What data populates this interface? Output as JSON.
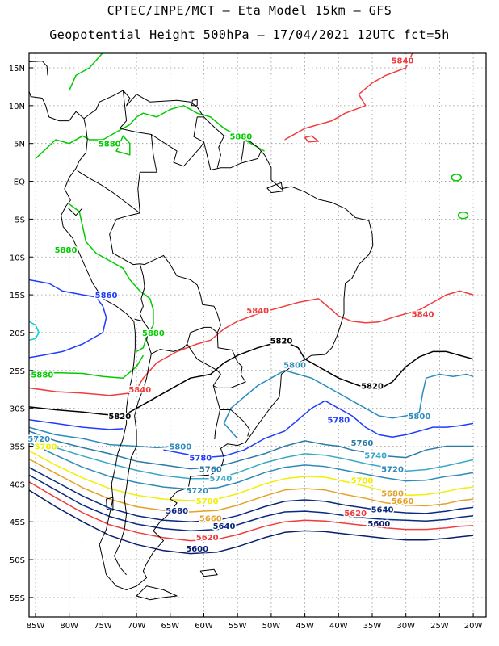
{
  "title_line1": "CPTEC/INPE/MCT –  Eta Model 15km – GFS",
  "title_line2": "Geopotential Height 500hPa – 17/04/2021 12UTC fct=5h",
  "lat_ticks": [
    "15N",
    "10N",
    "5N",
    "EQ",
    "5S",
    "10S",
    "15S",
    "20S",
    "25S",
    "30S",
    "35S",
    "40S",
    "45S",
    "50S",
    "55S"
  ],
  "lon_ticks": [
    "85W",
    "80W",
    "75W",
    "70W",
    "65W",
    "60W",
    "55W",
    "50W",
    "45W",
    "40W",
    "35W",
    "30W",
    "25W",
    "20W"
  ],
  "colors": {
    "c5880": "#00cc00",
    "c5860": "#1e3cff",
    "c5840": "#f03c3c",
    "c5820": "#000000",
    "c5800": "#2a8cbe",
    "c5780": "#1e3cff",
    "c5760": "#2a7aa8",
    "c5740": "#38a8c8",
    "c5720": "#2e8ab8",
    "c5700": "#f0f000",
    "c5680": "#e6a028",
    "c5660": "#0a2a80",
    "c5640": "#0a2a80",
    "c5620": "#f03c3c",
    "c5600": "#0a1e6e",
    "land": "#000000",
    "cyan": "#00d2d2"
  },
  "contour_labels": [
    {
      "text": "5840",
      "lon": -30.5,
      "lat": 16.0,
      "color": "c5840"
    },
    {
      "text": "5880",
      "lon": -74.0,
      "lat": 5.0,
      "color": "c5880"
    },
    {
      "text": "5880",
      "lon": -54.5,
      "lat": 6.0,
      "color": "c5880"
    },
    {
      "text": "5880",
      "lon": -80.5,
      "lat": -9.0,
      "color": "c5880"
    },
    {
      "text": "5860",
      "lon": -74.5,
      "lat": -15.0,
      "color": "c5860"
    },
    {
      "text": "5840",
      "lon": -52.0,
      "lat": -17.0,
      "color": "c5840"
    },
    {
      "text": "5840",
      "lon": -27.5,
      "lat": -17.5,
      "color": "c5840"
    },
    {
      "text": "5880",
      "lon": -67.5,
      "lat": -20.0,
      "color": "c5880"
    },
    {
      "text": "5820",
      "lon": -48.5,
      "lat": -21.0,
      "color": "c5820"
    },
    {
      "text": "5800",
      "lon": -46.5,
      "lat": -24.2,
      "color": "c5800"
    },
    {
      "text": "5880",
      "lon": -84.0,
      "lat": -25.5,
      "color": "c5880"
    },
    {
      "text": "5840",
      "lon": -69.5,
      "lat": -27.5,
      "color": "c5840"
    },
    {
      "text": "5820",
      "lon": -35.0,
      "lat": -27.0,
      "color": "c5820"
    },
    {
      "text": "5820",
      "lon": -72.5,
      "lat": -31.0,
      "color": "c5820"
    },
    {
      "text": "5780",
      "lon": -40.0,
      "lat": -31.5,
      "color": "c5780"
    },
    {
      "text": "5800",
      "lon": -28.0,
      "lat": -31.0,
      "color": "c5800"
    },
    {
      "text": "5720",
      "lon": -84.5,
      "lat": -34.0,
      "color": "c5720"
    },
    {
      "text": "5700",
      "lon": -83.5,
      "lat": -35.0,
      "color": "c5700"
    },
    {
      "text": "5800",
      "lon": -63.5,
      "lat": -35.0,
      "color": "c5800"
    },
    {
      "text": "5760",
      "lon": -36.5,
      "lat": -34.5,
      "color": "c5760"
    },
    {
      "text": "5740",
      "lon": -34.5,
      "lat": -36.2,
      "color": "c5740"
    },
    {
      "text": "5780",
      "lon": -60.5,
      "lat": -36.5,
      "color": "c5780"
    },
    {
      "text": "5760",
      "lon": -59.0,
      "lat": -38.0,
      "color": "c5760"
    },
    {
      "text": "5720",
      "lon": -32.0,
      "lat": -38.0,
      "color": "c5720"
    },
    {
      "text": "5740",
      "lon": -57.5,
      "lat": -39.2,
      "color": "c5740"
    },
    {
      "text": "5700",
      "lon": -36.5,
      "lat": -39.5,
      "color": "c5700"
    },
    {
      "text": "5720",
      "lon": -61.0,
      "lat": -40.8,
      "color": "c5720"
    },
    {
      "text": "5680",
      "lon": -32.0,
      "lat": -41.2,
      "color": "c5680"
    },
    {
      "text": "5700",
      "lon": -59.5,
      "lat": -42.2,
      "color": "c5700"
    },
    {
      "text": "5660",
      "lon": -30.5,
      "lat": -42.2,
      "color": "c5680"
    },
    {
      "text": "5680",
      "lon": -64.0,
      "lat": -43.5,
      "color": "c5660"
    },
    {
      "text": "5640",
      "lon": -33.5,
      "lat": -43.3,
      "color": "c5640"
    },
    {
      "text": "5620",
      "lon": -37.5,
      "lat": -43.8,
      "color": "c5620"
    },
    {
      "text": "5660",
      "lon": -59.0,
      "lat": -44.5,
      "color": "c5680"
    },
    {
      "text": "5640",
      "lon": -57.0,
      "lat": -45.5,
      "color": "c5640"
    },
    {
      "text": "5600",
      "lon": -34.0,
      "lat": -45.2,
      "color": "c5600"
    },
    {
      "text": "5620",
      "lon": -59.5,
      "lat": -47.0,
      "color": "c5620"
    },
    {
      "text": "5600",
      "lon": -61.0,
      "lat": -48.5,
      "color": "c5600"
    }
  ]
}
